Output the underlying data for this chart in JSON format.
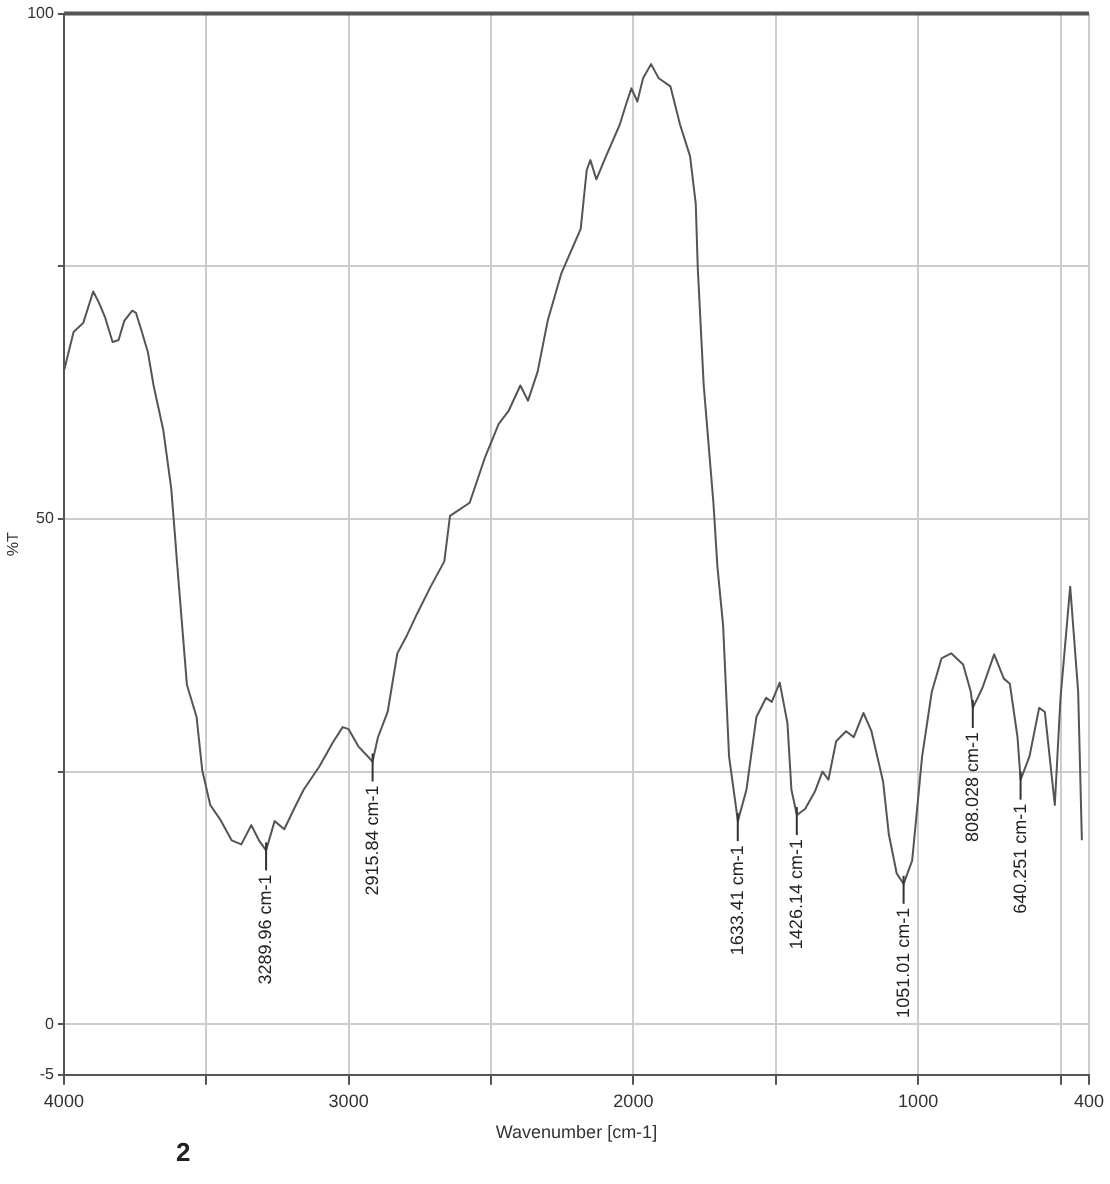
{
  "chart_data": {
    "type": "line",
    "xlabel": "Wavenumber [cm-1]",
    "ylabel": "%T",
    "xlim": [
      4000,
      400
    ],
    "ylim": [
      -5,
      100
    ],
    "xticks": [
      4000,
      {
        "value": 3500,
        "label": null
      },
      3000,
      {
        "value": 2500,
        "label": null
      },
      2000,
      {
        "value": 1500,
        "label": null
      },
      1000,
      {
        "value": 500,
        "label": null
      },
      400
    ],
    "yticks": [
      -5,
      0,
      {
        "value": 25,
        "label": null
      },
      50,
      {
        "value": 75,
        "label": null
      },
      100
    ],
    "grid": true,
    "marker": "none",
    "line_style": "solid",
    "x": [
      4000,
      3966,
      3932,
      3897,
      3877,
      3856,
      3829,
      3808,
      3788,
      3760,
      3747,
      3726,
      3705,
      3685,
      3651,
      3623,
      3610,
      3603,
      3568,
      3534,
      3514,
      3486,
      3452,
      3411,
      3377,
      3342,
      3315,
      3290,
      3260,
      3226,
      3192,
      3158,
      3103,
      3055,
      3021,
      3000,
      2966,
      2916,
      2897,
      2863,
      2829,
      2795,
      2760,
      2712,
      2664,
      2644,
      2575,
      2521,
      2473,
      2438,
      2397,
      2370,
      2336,
      2301,
      2253,
      2185,
      2164,
      2151,
      2130,
      2096,
      2048,
      2027,
      2007,
      1986,
      1966,
      1938,
      1911,
      1870,
      1836,
      1801,
      1781,
      1774,
      1753,
      1719,
      1705,
      1685,
      1664,
      1633,
      1603,
      1568,
      1534,
      1514,
      1486,
      1459,
      1445,
      1426,
      1397,
      1363,
      1336,
      1315,
      1288,
      1253,
      1226,
      1192,
      1164,
      1123,
      1103,
      1075,
      1051,
      1021,
      986,
      952,
      918,
      884,
      842,
      815,
      808,
      774,
      733,
      699,
      678,
      651,
      640,
      609,
      575,
      555,
      520,
      500,
      466,
      438,
      425
    ],
    "series": [
      {
        "color": "#555555",
        "values": [
          64.6,
          68.5,
          69.4,
          72.5,
          71.4,
          70,
          67.5,
          67.7,
          69.6,
          70.6,
          70.4,
          68.5,
          66.5,
          63.2,
          58.8,
          53,
          48.4,
          45.8,
          33.6,
          30.4,
          25.1,
          21.7,
          20.3,
          18.2,
          17.8,
          19.7,
          18.2,
          17.2,
          20.1,
          19.3,
          21.3,
          23.2,
          25.5,
          27.9,
          29.4,
          29.2,
          27.5,
          26,
          28.4,
          30.9,
          36.7,
          38.5,
          40.6,
          43.3,
          45.8,
          50.3,
          51.6,
          56.1,
          59.4,
          60.7,
          63.2,
          61.7,
          64.6,
          69.6,
          74.3,
          78.7,
          84.5,
          85.5,
          83.6,
          85.9,
          89,
          90.9,
          92.6,
          91.3,
          93.6,
          95,
          93.6,
          92.8,
          89,
          85.9,
          81.2,
          74.9,
          63.2,
          51.6,
          45.3,
          39.5,
          26.5,
          20.1,
          23.2,
          30.4,
          32.3,
          31.9,
          33.8,
          29.8,
          23.2,
          20.7,
          21.3,
          23,
          25,
          24.2,
          28,
          29,
          28.4,
          30.8,
          29,
          24,
          18.8,
          14.9,
          13.9,
          16.2,
          26.5,
          32.9,
          36.2,
          36.7,
          35.6,
          32.9,
          31.3,
          33.3,
          36.6,
          34.2,
          33.7,
          28.4,
          24.2,
          26.5,
          31.3,
          30.9,
          21.7,
          32.3,
          43.3,
          32.9,
          18.2
        ]
      }
    ],
    "annotations": [
      {
        "text": "3289.96 cm-1",
        "x": 3289.96,
        "y": 17.2
      },
      {
        "text": "2915.84 cm-1",
        "x": 2915.84,
        "y": 26
      },
      {
        "text": "1633.41 cm-1",
        "x": 1633.41,
        "y": 20.1
      },
      {
        "text": "1426.14 cm-1",
        "x": 1426.14,
        "y": 20.7
      },
      {
        "text": "1051.01 cm-1",
        "x": 1051.01,
        "y": 13.9
      },
      {
        "text": "808.028 cm-1",
        "x": 808.028,
        "y": 31.3
      },
      {
        "text": "640.251 cm-1",
        "x": 640.251,
        "y": 24.2
      },
      "2"
    ]
  }
}
